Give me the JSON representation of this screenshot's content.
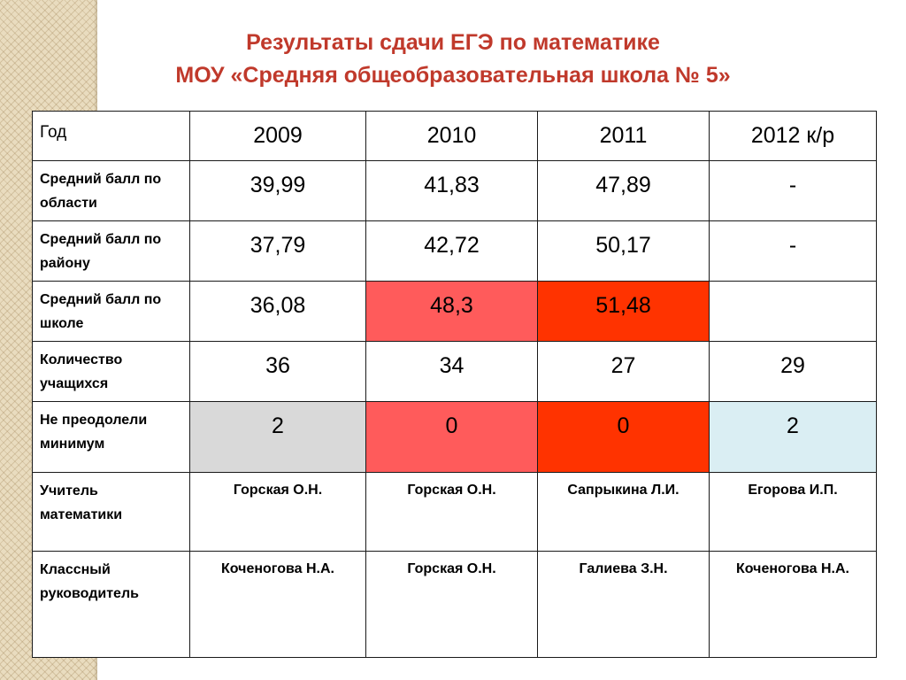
{
  "title": {
    "line1": "Результаты сдачи ЕГЭ по математике",
    "line2": "МОУ «Средняя общеобразовательная школа № 5»"
  },
  "table": {
    "header": {
      "label": "Год",
      "years": [
        "2009",
        "2010",
        "2011",
        "2012 к/р"
      ]
    },
    "rows": [
      {
        "label": "Средний балл по области",
        "values": [
          "39,99",
          "41,83",
          "47,89",
          "-"
        ]
      },
      {
        "label": "Средний балл по району",
        "values": [
          "37,79",
          "42,72",
          "50,17",
          "-"
        ]
      },
      {
        "label": "Средний балл по школе",
        "values": [
          "36,08",
          "48,3",
          "51,48",
          ""
        ]
      },
      {
        "label": "Количество учащихся",
        "values": [
          "36",
          "34",
          "27",
          "29"
        ]
      },
      {
        "label": "Не преодолели минимум",
        "values": [
          "2",
          "0",
          "0",
          "2"
        ]
      },
      {
        "label": "Учитель математики",
        "values": [
          "Горская О.Н.",
          "Горская О.Н.",
          "Сапрыкина Л.И.",
          "Егорова И.П."
        ]
      },
      {
        "label": "Классный руководитель",
        "values": [
          "Коченогова Н.А.",
          "Горская О.Н.",
          "Галиева З.Н.",
          "Коченогова Н.А."
        ]
      }
    ]
  },
  "colors": {
    "title": "#c0392b",
    "highlight_pink": "#ff5b5b",
    "highlight_red": "#ff3300",
    "highlight_gray": "#d9d9d9",
    "highlight_lightblue": "#daeef3"
  }
}
